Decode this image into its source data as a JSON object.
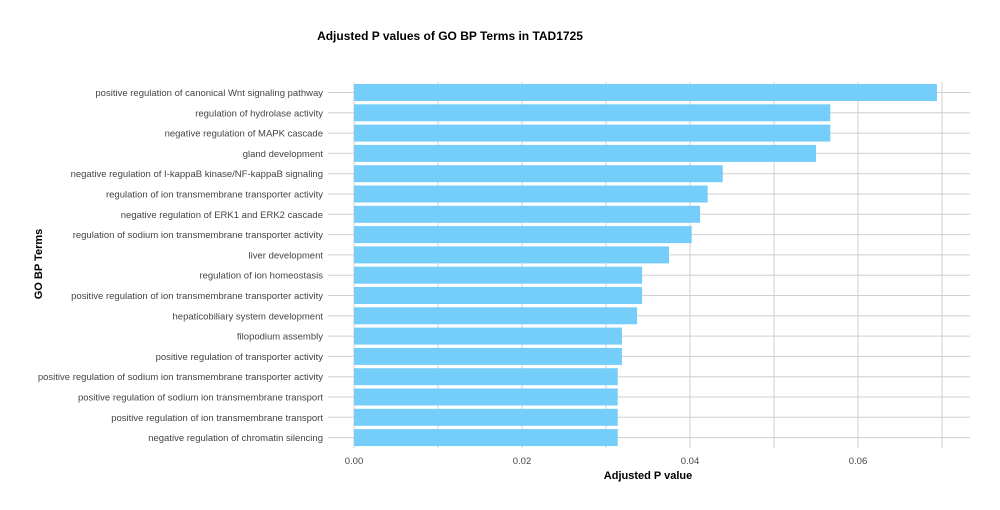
{
  "chart_data": {
    "type": "bar",
    "orientation": "horizontal",
    "title": "Adjusted P values of GO BP Terms in TAD1725",
    "xlabel": "Adjusted P value",
    "ylabel": "GO BP Terms",
    "xlim": [
      0,
      0.07
    ],
    "xticks": [
      "0.00",
      "0.02",
      "0.04",
      "0.06"
    ],
    "xtick_values": [
      0,
      0.02,
      0.04,
      0.06
    ],
    "bar_color": "#75CEFA",
    "grid_color": "#d0d0d0",
    "grid": true,
    "categories": [
      "positive regulation of canonical Wnt signaling pathway",
      "regulation of hydrolase activity",
      "negative regulation of MAPK cascade",
      "gland development",
      "negative regulation of I-kappaB kinase/NF-kappaB signaling",
      "regulation of ion transmembrane transporter activity",
      "negative regulation of ERK1 and ERK2 cascade",
      "regulation of sodium ion transmembrane transporter activity",
      "liver development",
      "regulation of ion homeostasis",
      "positive regulation of ion transmembrane transporter activity",
      "hepaticobiliary system development",
      "filopodium assembly",
      "positive regulation of transporter activity",
      "positive regulation of sodium ion transmembrane transporter activity",
      "positive regulation of sodium ion transmembrane transport",
      "positive regulation of ion transmembrane transport",
      "negative regulation of chromatin silencing"
    ],
    "values": [
      0.0694,
      0.0567,
      0.0567,
      0.055,
      0.0439,
      0.0421,
      0.0412,
      0.0402,
      0.0375,
      0.0343,
      0.0343,
      0.0337,
      0.0319,
      0.0319,
      0.0314,
      0.0314,
      0.0314,
      0.0314
    ]
  }
}
